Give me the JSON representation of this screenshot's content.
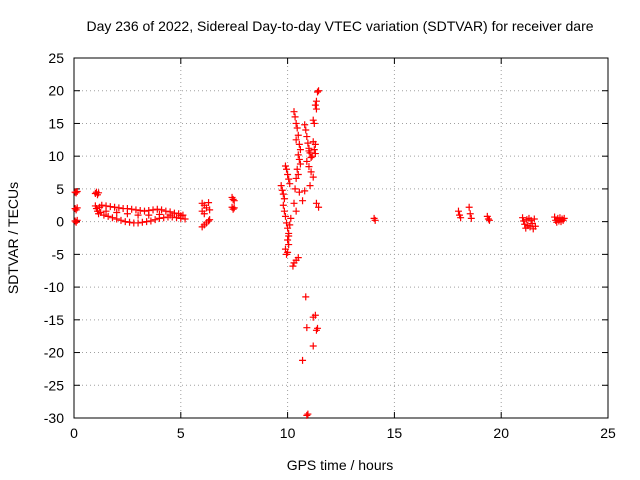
{
  "chart_data": {
    "type": "scatter",
    "title": "Day 236 of 2022, Sidereal Day-to-day VTEC variation (SDTVAR) for receiver dare",
    "xlabel": "GPS time / hours",
    "ylabel": "SDTVAR / TECUs",
    "xlim": [
      0,
      25
    ],
    "ylim": [
      -30,
      25
    ],
    "xticks": [
      0,
      5,
      10,
      15,
      20,
      25
    ],
    "yticks": [
      -30,
      -25,
      -20,
      -15,
      -10,
      -5,
      0,
      5,
      10,
      15,
      20,
      25
    ],
    "grid": true,
    "marker": "plus",
    "color": "#ff0000",
    "series": [
      {
        "name": "SDTVAR",
        "points": [
          [
            0.05,
            4.5
          ],
          [
            0.1,
            4.4
          ],
          [
            0.15,
            4.6
          ],
          [
            0.05,
            2.0
          ],
          [
            0.1,
            1.8
          ],
          [
            0.15,
            2.1
          ],
          [
            0.05,
            0.1
          ],
          [
            0.1,
            -0.1
          ],
          [
            0.15,
            0.2
          ],
          [
            1.0,
            4.3
          ],
          [
            1.05,
            4.5
          ],
          [
            1.1,
            4.1
          ],
          [
            1.15,
            4.4
          ],
          [
            1.0,
            2.4
          ],
          [
            1.05,
            2.0
          ],
          [
            1.1,
            1.6
          ],
          [
            1.15,
            1.2
          ],
          [
            1.2,
            2.2
          ],
          [
            1.25,
            1.4
          ],
          [
            1.3,
            2.5
          ],
          [
            1.4,
            1.0
          ],
          [
            1.5,
            2.4
          ],
          [
            1.6,
            0.8
          ],
          [
            1.7,
            2.3
          ],
          [
            1.8,
            0.6
          ],
          [
            1.9,
            2.2
          ],
          [
            2.0,
            0.4
          ],
          [
            2.1,
            2.1
          ],
          [
            2.2,
            0.2
          ],
          [
            2.3,
            2.0
          ],
          [
            2.4,
            0.0
          ],
          [
            2.5,
            2.0
          ],
          [
            2.6,
            -0.1
          ],
          [
            2.7,
            1.9
          ],
          [
            2.8,
            -0.2
          ],
          [
            2.9,
            1.8
          ],
          [
            3.0,
            -0.2
          ],
          [
            3.1,
            1.7
          ],
          [
            3.2,
            -0.1
          ],
          [
            3.3,
            1.6
          ],
          [
            3.4,
            0.0
          ],
          [
            3.5,
            1.7
          ],
          [
            3.6,
            0.1
          ],
          [
            3.7,
            1.8
          ],
          [
            3.8,
            0.3
          ],
          [
            3.9,
            1.9
          ],
          [
            4.0,
            0.5
          ],
          [
            4.1,
            1.8
          ],
          [
            4.2,
            0.6
          ],
          [
            4.3,
            1.6
          ],
          [
            4.4,
            0.7
          ],
          [
            4.5,
            1.5
          ],
          [
            4.6,
            0.7
          ],
          [
            4.7,
            1.3
          ],
          [
            4.8,
            0.6
          ],
          [
            4.9,
            1.2
          ],
          [
            5.0,
            0.5
          ],
          [
            5.1,
            1.0
          ],
          [
            5.2,
            0.4
          ],
          [
            1.5,
            1.6
          ],
          [
            2.0,
            1.4
          ],
          [
            2.5,
            1.2
          ],
          [
            3.0,
            1.0
          ],
          [
            3.5,
            1.0
          ],
          [
            4.0,
            1.1
          ],
          [
            4.5,
            1.0
          ],
          [
            5.0,
            0.9
          ],
          [
            6.0,
            2.8
          ],
          [
            6.1,
            2.5
          ],
          [
            6.2,
            2.1
          ],
          [
            6.3,
            2.9
          ],
          [
            6.35,
            1.8
          ],
          [
            6.0,
            1.6
          ],
          [
            6.1,
            1.2
          ],
          [
            6.0,
            -0.8
          ],
          [
            6.1,
            -0.5
          ],
          [
            6.2,
            -0.2
          ],
          [
            6.3,
            0.1
          ],
          [
            6.35,
            0.3
          ],
          [
            7.4,
            3.7
          ],
          [
            7.45,
            3.4
          ],
          [
            7.5,
            3.2
          ],
          [
            7.4,
            2.2
          ],
          [
            7.45,
            1.9
          ],
          [
            7.5,
            2.1
          ],
          [
            9.7,
            5.5
          ],
          [
            9.75,
            4.8
          ],
          [
            9.8,
            4.2
          ],
          [
            9.85,
            3.5
          ],
          [
            9.9,
            8.5
          ],
          [
            9.95,
            8.0
          ],
          [
            10.0,
            7.2
          ],
          [
            10.05,
            6.5
          ],
          [
            10.1,
            5.8
          ],
          [
            9.8,
            2.5
          ],
          [
            9.85,
            1.6
          ],
          [
            9.9,
            0.8
          ],
          [
            9.95,
            -0.2
          ],
          [
            10.0,
            -1.0
          ],
          [
            10.05,
            -1.8
          ],
          [
            10.0,
            -2.8
          ],
          [
            10.05,
            -3.5
          ],
          [
            9.9,
            -4.2
          ],
          [
            9.95,
            -5.0
          ],
          [
            10.0,
            -4.7
          ],
          [
            10.05,
            -2.2
          ],
          [
            10.1,
            -0.5
          ],
          [
            10.15,
            0.5
          ],
          [
            10.25,
            -6.8
          ],
          [
            10.3,
            -6.3
          ],
          [
            10.4,
            -5.9
          ],
          [
            10.5,
            -5.5
          ],
          [
            10.3,
            16.8
          ],
          [
            10.35,
            16.0
          ],
          [
            10.4,
            15.0
          ],
          [
            10.45,
            14.3
          ],
          [
            10.5,
            13.2
          ],
          [
            10.4,
            12.5
          ],
          [
            10.55,
            11.8
          ],
          [
            10.6,
            11.0
          ],
          [
            10.5,
            10.2
          ],
          [
            10.55,
            9.5
          ],
          [
            10.6,
            8.8
          ],
          [
            10.45,
            8.0
          ],
          [
            10.5,
            7.2
          ],
          [
            10.4,
            6.6
          ],
          [
            10.35,
            5.0
          ],
          [
            10.55,
            4.5
          ],
          [
            10.3,
            2.8
          ],
          [
            10.4,
            1.6
          ],
          [
            10.8,
            4.7
          ],
          [
            10.7,
            3.2
          ],
          [
            10.8,
            14.8
          ],
          [
            10.85,
            14.0
          ],
          [
            10.9,
            13.0
          ],
          [
            10.95,
            12.0
          ],
          [
            11.0,
            11.2
          ],
          [
            11.05,
            10.5
          ],
          [
            11.1,
            9.8
          ],
          [
            10.9,
            9.2
          ],
          [
            11.0,
            8.4
          ],
          [
            11.1,
            7.6
          ],
          [
            11.2,
            6.8
          ],
          [
            11.05,
            5.5
          ],
          [
            11.0,
            10.8
          ],
          [
            11.15,
            10.0
          ],
          [
            11.2,
            15.5
          ],
          [
            11.25,
            15.0
          ],
          [
            11.3,
            17.8
          ],
          [
            11.35,
            18.4
          ],
          [
            11.4,
            19.8
          ],
          [
            11.45,
            20.0
          ],
          [
            11.35,
            17.2
          ],
          [
            11.3,
            11.8
          ],
          [
            11.25,
            11.0
          ],
          [
            11.3,
            10.4
          ],
          [
            11.2,
            12.2
          ],
          [
            11.35,
            2.8
          ],
          [
            11.45,
            2.2
          ],
          [
            10.85,
            -11.5
          ],
          [
            10.9,
            -16.2
          ],
          [
            11.2,
            -14.6
          ],
          [
            11.3,
            -14.3
          ],
          [
            11.35,
            -16.6
          ],
          [
            11.4,
            -16.3
          ],
          [
            11.2,
            -19.0
          ],
          [
            10.7,
            -21.2
          ],
          [
            10.9,
            -29.6
          ],
          [
            10.95,
            -29.4
          ],
          [
            14.05,
            0.5
          ],
          [
            14.1,
            0.2
          ],
          [
            18.0,
            1.6
          ],
          [
            18.05,
            1.0
          ],
          [
            18.1,
            0.6
          ],
          [
            18.5,
            2.2
          ],
          [
            18.55,
            1.2
          ],
          [
            18.6,
            0.5
          ],
          [
            19.35,
            0.8
          ],
          [
            19.4,
            0.4
          ],
          [
            19.45,
            0.2
          ],
          [
            21.0,
            0.6
          ],
          [
            21.05,
            0.1
          ],
          [
            21.1,
            -0.4
          ],
          [
            21.15,
            -1.0
          ],
          [
            21.2,
            0.3
          ],
          [
            21.25,
            -0.6
          ],
          [
            21.3,
            0.5
          ],
          [
            21.35,
            -0.8
          ],
          [
            21.4,
            0.2
          ],
          [
            21.45,
            -0.3
          ],
          [
            21.5,
            -1.1
          ],
          [
            21.55,
            0.4
          ],
          [
            21.6,
            -0.7
          ],
          [
            22.5,
            0.7
          ],
          [
            22.55,
            0.2
          ],
          [
            22.6,
            -0.1
          ],
          [
            22.65,
            0.5
          ],
          [
            22.7,
            0.1
          ],
          [
            22.75,
            0.6
          ],
          [
            22.8,
            0.0
          ],
          [
            22.85,
            0.4
          ],
          [
            22.9,
            0.2
          ],
          [
            22.95,
            0.5
          ]
        ]
      }
    ]
  }
}
